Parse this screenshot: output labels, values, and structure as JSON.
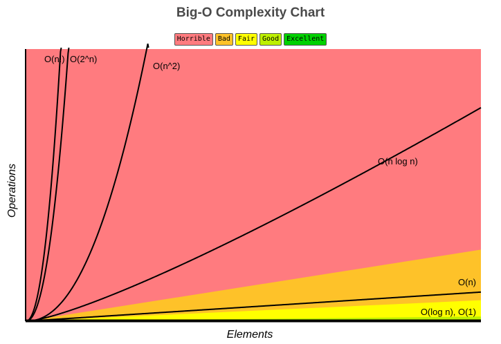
{
  "chart_data": {
    "type": "line",
    "title": "Big-O Complexity Chart",
    "xlabel": "Elements",
    "ylabel": "Operations",
    "legend": {
      "placement": "top-center",
      "items": [
        {
          "label": "Horrible",
          "color": "#ff7b7f"
        },
        {
          "label": "Bad",
          "color": "#fec229"
        },
        {
          "label": "Fair",
          "color": "#ffff00"
        },
        {
          "label": "Good",
          "color": "#bdf000"
        },
        {
          "label": "Excellent",
          "color": "#00d100"
        }
      ]
    },
    "xlim": [
      0,
      100
    ],
    "ylim": [
      0,
      1000
    ],
    "grid": false,
    "region_boundaries": [
      {
        "zone": "Horrible",
        "slope": 15,
        "color": "#ff7b7f"
      },
      {
        "zone": "Bad",
        "slope": 2.63,
        "color": "#fec229"
      },
      {
        "zone": "Fair",
        "slope": 0.77,
        "color": "#ffff00"
      },
      {
        "zone": "Good",
        "slope": 0.17,
        "color": "#bdf000"
      },
      {
        "zone": "Excellent",
        "slope": 0.03,
        "color": "#00d100"
      }
    ],
    "series": [
      {
        "name": "O(n!)",
        "function": "factorial"
      },
      {
        "name": "O(2^n)",
        "function": "exponential"
      },
      {
        "name": "O(n^2)",
        "function": "quadratic"
      },
      {
        "name": "O(n log n)",
        "function": "linearithmic"
      },
      {
        "name": "O(n)",
        "function": "linear"
      },
      {
        "name": "O(log n), O(1)",
        "function": "logarithmic_constant"
      }
    ]
  }
}
